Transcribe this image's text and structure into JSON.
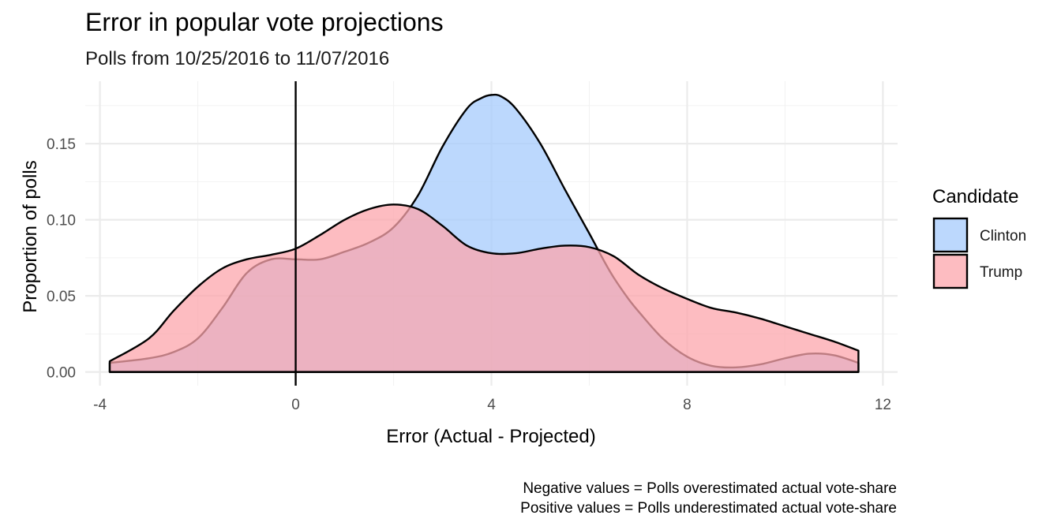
{
  "chart_data": {
    "type": "area",
    "title": "Error in popular vote projections",
    "subtitle": "Polls from 10/25/2016 to 11/07/2016",
    "xlabel": "Error (Actual - Projected)",
    "ylabel": "Proportion of polls",
    "xlim": [
      -4.3,
      12.3
    ],
    "ylim": [
      -0.009,
      0.191
    ],
    "x_ticks": [
      -4,
      0,
      4,
      8,
      12
    ],
    "y_ticks": [
      0.0,
      0.05,
      0.1,
      0.15
    ],
    "x_tick_labels": [
      "-4",
      "0",
      "4",
      "8",
      "12"
    ],
    "y_tick_labels": [
      "0.00",
      "0.05",
      "0.10",
      "0.15"
    ],
    "grid": true,
    "vertical_reference_line": 0,
    "legend": {
      "title": "Candidate",
      "position": "right"
    },
    "caption": [
      "Negative values = Polls overestimated actual vote-share",
      "Positive values = Polls underestimated actual vote-share"
    ],
    "series": [
      {
        "name": "Clinton",
        "fill": "#a6cbfc",
        "x": [
          -3.8,
          -3.0,
          -2.5,
          -2.0,
          -1.5,
          -1.0,
          -0.5,
          0.0,
          0.5,
          1.0,
          1.5,
          2.0,
          2.5,
          3.0,
          3.5,
          3.8,
          4.0,
          4.2,
          4.5,
          5.0,
          5.5,
          6.0,
          6.3,
          6.5,
          6.8,
          7.0,
          7.5,
          8.0,
          8.5,
          9.0,
          9.5,
          10.0,
          10.5,
          11.0,
          11.5
        ],
        "y": [
          0.006,
          0.009,
          0.013,
          0.022,
          0.042,
          0.065,
          0.074,
          0.074,
          0.074,
          0.079,
          0.085,
          0.095,
          0.116,
          0.148,
          0.173,
          0.18,
          0.182,
          0.181,
          0.173,
          0.15,
          0.12,
          0.091,
          0.073,
          0.062,
          0.048,
          0.04,
          0.022,
          0.01,
          0.004,
          0.003,
          0.005,
          0.009,
          0.012,
          0.011,
          0.006
        ]
      },
      {
        "name": "Trump",
        "fill": "#fca6ac",
        "x": [
          -3.8,
          -3.0,
          -2.5,
          -2.0,
          -1.5,
          -1.0,
          -0.5,
          0.0,
          0.5,
          1.0,
          1.5,
          2.0,
          2.5,
          3.0,
          3.5,
          4.0,
          4.5,
          5.0,
          5.5,
          6.0,
          6.5,
          7.0,
          7.5,
          8.0,
          8.5,
          9.0,
          9.5,
          10.0,
          10.5,
          11.0,
          11.5
        ],
        "y": [
          0.007,
          0.022,
          0.04,
          0.056,
          0.068,
          0.074,
          0.077,
          0.081,
          0.09,
          0.1,
          0.107,
          0.11,
          0.107,
          0.096,
          0.083,
          0.078,
          0.078,
          0.081,
          0.083,
          0.082,
          0.076,
          0.064,
          0.055,
          0.048,
          0.042,
          0.039,
          0.035,
          0.03,
          0.025,
          0.02,
          0.014
        ]
      }
    ]
  }
}
